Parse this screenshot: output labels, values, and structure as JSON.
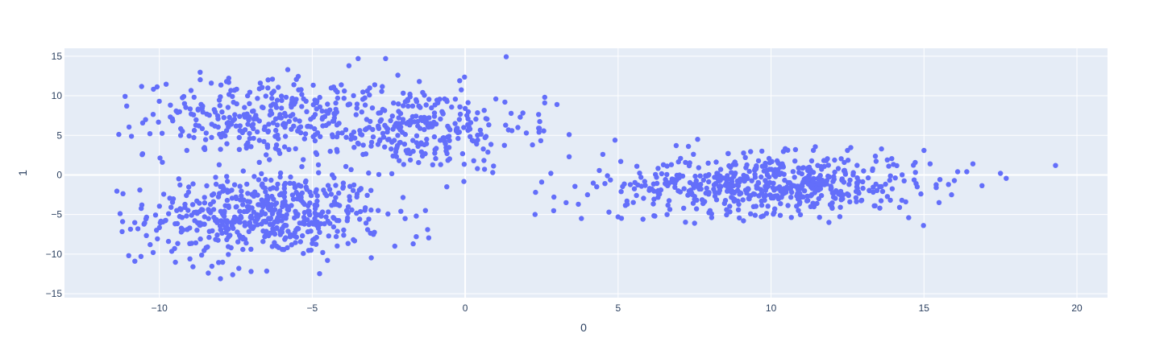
{
  "chart_data": {
    "type": "scatter",
    "xlabel": "0",
    "ylabel": "1",
    "xlim": [
      -13.1,
      21.0
    ],
    "ylim": [
      -15.5,
      16.0
    ],
    "x_ticks": [
      -10,
      -5,
      0,
      5,
      10,
      15,
      20
    ],
    "x_tick_labels": [
      "−10",
      "−5",
      "0",
      "5",
      "10",
      "15",
      "20"
    ],
    "y_ticks": [
      -15,
      -10,
      -5,
      0,
      5,
      10,
      15
    ],
    "y_tick_labels": [
      "−15",
      "−10",
      "−5",
      "0",
      "5",
      "10",
      "15"
    ],
    "grid": true,
    "legend": "none",
    "colors": {
      "marker": "#636efa",
      "plot_background": "#e5ecf6",
      "grid": "#ffffff",
      "text": "#2a3f5f"
    },
    "clusters": [
      {
        "cx": -6.5,
        "cy": -5.0,
        "sx": 1.9,
        "sy": 2.6,
        "n": 520
      },
      {
        "cx": -6.8,
        "cy": 7.2,
        "sx": 1.8,
        "sy": 2.4,
        "n": 260
      },
      {
        "cx": -1.8,
        "cy": 6.0,
        "sx": 1.9,
        "sy": 2.6,
        "n": 300
      },
      {
        "cx": 10.0,
        "cy": -1.2,
        "sx": 2.4,
        "sy": 1.8,
        "n": 560
      }
    ],
    "points": [
      [
        -11.2,
        -5.9
      ],
      [
        -11.0,
        -10.2
      ],
      [
        -10.8,
        -10.9
      ],
      [
        -10.7,
        -6.8
      ],
      [
        -10.6,
        -10.3
      ],
      [
        -10.3,
        -8.8
      ],
      [
        -10.2,
        -9.8
      ],
      [
        -10.0,
        9.3
      ],
      [
        -9.9,
        1.6
      ],
      [
        -9.7,
        -8.4
      ],
      [
        -9.5,
        -9.3
      ],
      [
        -9.4,
        7.9
      ],
      [
        -9.2,
        9.9
      ],
      [
        -9.1,
        3.1
      ],
      [
        -9.0,
        -10.6
      ],
      [
        -8.9,
        -11.6
      ],
      [
        -8.6,
        8.4
      ],
      [
        -8.4,
        -12.4
      ],
      [
        -8.3,
        11.6
      ],
      [
        -8.0,
        -13.1
      ],
      [
        -7.8,
        11.8
      ],
      [
        -7.6,
        -12.6
      ],
      [
        -7.4,
        -11.8
      ],
      [
        -7.0,
        -12.2
      ],
      [
        -6.7,
        11.6
      ],
      [
        -6.3,
        12.1
      ],
      [
        -5.8,
        13.3
      ],
      [
        -5.6,
        11.4
      ],
      [
        -4.5,
        -10.8
      ],
      [
        -4.3,
        11.1
      ],
      [
        -3.8,
        13.8
      ],
      [
        -3.5,
        14.7
      ],
      [
        -3.2,
        10.6
      ],
      [
        -2.6,
        14.7
      ],
      [
        -2.2,
        12.6
      ],
      [
        -1.5,
        11.8
      ],
      [
        -1.6,
        -5.2
      ],
      [
        -1.3,
        -4.5
      ],
      [
        -1.7,
        -8.7
      ],
      [
        -1.6,
        -7.8
      ],
      [
        -2.3,
        -9.0
      ],
      [
        -3.0,
        -7.5
      ],
      [
        -0.6,
        -1.5
      ],
      [
        0.4,
        0.8
      ],
      [
        0.9,
        0.3
      ],
      [
        1.0,
        9.6
      ],
      [
        1.3,
        9.2
      ],
      [
        1.8,
        7.3
      ],
      [
        2.0,
        5.3
      ],
      [
        2.2,
        3.8
      ],
      [
        2.4,
        5.9
      ],
      [
        2.6,
        9.8
      ],
      [
        2.6,
        9.1
      ],
      [
        3.0,
        8.9
      ],
      [
        2.8,
        0.2
      ],
      [
        2.5,
        -0.9
      ],
      [
        2.3,
        -2.2
      ],
      [
        2.9,
        -2.8
      ],
      [
        3.3,
        -3.5
      ],
      [
        3.4,
        5.1
      ],
      [
        3.4,
        2.3
      ],
      [
        3.7,
        -3.7
      ],
      [
        3.8,
        -5.5
      ],
      [
        4.0,
        -2.5
      ],
      [
        4.3,
        -1.5
      ],
      [
        4.5,
        2.6
      ],
      [
        4.7,
        -4.7
      ],
      [
        4.9,
        4.4
      ],
      [
        5.0,
        -5.3
      ],
      [
        5.3,
        -3.7
      ],
      [
        15.0,
        3.1
      ],
      [
        15.2,
        1.4
      ],
      [
        15.4,
        -1.6
      ],
      [
        15.8,
        -1.2
      ],
      [
        15.9,
        -2.5
      ],
      [
        16.1,
        0.4
      ],
      [
        16.4,
        0.4
      ],
      [
        16.6,
        1.4
      ],
      [
        17.5,
        0.2
      ],
      [
        19.3,
        1.2
      ],
      [
        14.9,
        -2.4
      ],
      [
        14.5,
        -5.4
      ],
      [
        14.2,
        -4.1
      ],
      [
        13.8,
        1.9
      ],
      [
        13.4,
        -3.9
      ],
      [
        12.5,
        3.1
      ],
      [
        12.0,
        -4.2
      ],
      [
        11.8,
        1.8
      ],
      [
        11.5,
        -3.6
      ],
      [
        10.8,
        3.2
      ],
      [
        10.3,
        -5.1
      ],
      [
        9.7,
        3.0
      ],
      [
        9.1,
        -5.8
      ],
      [
        8.6,
        2.7
      ],
      [
        7.6,
        4.5
      ],
      [
        7.5,
        -6.1
      ],
      [
        7.3,
        3.6
      ],
      [
        6.9,
        3.7
      ],
      [
        6.6,
        -5.0
      ],
      [
        6.2,
        -5.2
      ]
    ]
  }
}
